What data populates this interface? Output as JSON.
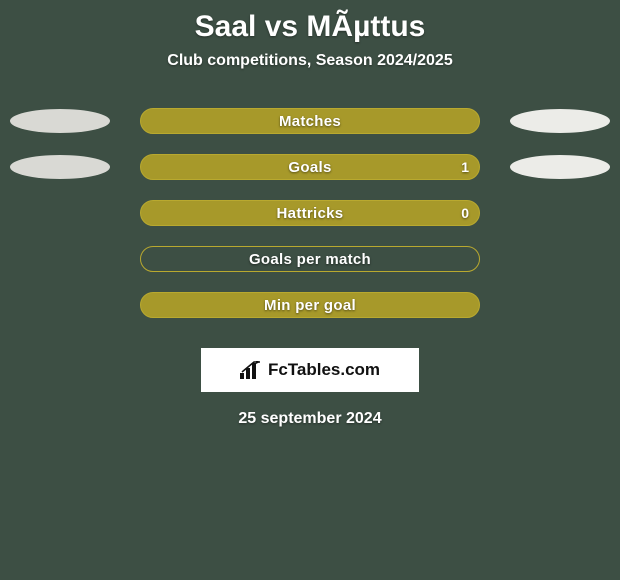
{
  "background_color": "#3d4f44",
  "title": "Saal vs MÃµttus",
  "subtitle": "Club competitions, Season 2024/2025",
  "date": "25 september 2024",
  "branding": "FcTables.com",
  "oval_colors": {
    "left": "#d9d9d4",
    "right": "#ecece8"
  },
  "bar_defaults": {
    "border_color": "#b9a92f",
    "fill_color": "#a7992a",
    "label_color": "#ffffff"
  },
  "rows": [
    {
      "label": "Matches",
      "fill": "#a7992a",
      "value": "",
      "show_ovals": true
    },
    {
      "label": "Goals",
      "fill": "#a7992a",
      "value": "1",
      "show_ovals": true
    },
    {
      "label": "Hattricks",
      "fill": "#a7992a",
      "value": "0",
      "show_ovals": false
    },
    {
      "label": "Goals per match",
      "fill": "none",
      "value": "",
      "show_ovals": false
    },
    {
      "label": "Min per goal",
      "fill": "#a7992a",
      "value": "",
      "show_ovals": false
    }
  ]
}
